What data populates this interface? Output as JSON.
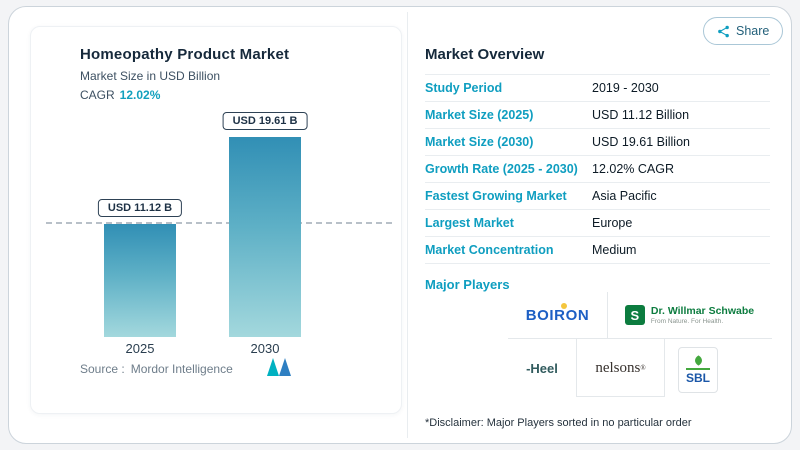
{
  "theme": {
    "accent_teal": "#0f9ec0",
    "navy": "#16293b",
    "bar_gradient_top": "#318fb5",
    "bar_gradient_bottom": "#a3d8dd"
  },
  "share_button": {
    "label": "Share"
  },
  "left_panel": {
    "title": "Homeopathy Product Market",
    "subtitle": "Market Size in USD Billion",
    "cagr_label": "CAGR",
    "cagr_value": "12.02%",
    "source_label": "Source :",
    "source_value": "Mordor Intelligence"
  },
  "chart_data": {
    "type": "bar",
    "title": "Homeopathy Product Market",
    "ylabel": "Market Size in USD Billion",
    "unit": "USD Billion",
    "categories": [
      "2025",
      "2030"
    ],
    "values": [
      11.12,
      19.61
    ],
    "bar_labels": [
      "USD 11.12 B",
      "USD 19.61 B"
    ],
    "cagr_percent": 12.02,
    "ylim": [
      0,
      20
    ],
    "grid": false,
    "reference_line": {
      "at_value": 11.12,
      "style": "dashed"
    }
  },
  "market_overview": {
    "title": "Market Overview",
    "rows": [
      {
        "label": "Study Period",
        "value": "2019 - 2030"
      },
      {
        "label": "Market Size (2025)",
        "value": "USD 11.12 Billion"
      },
      {
        "label": "Market Size (2030)",
        "value": "USD 19.61 Billion"
      },
      {
        "label": "Growth Rate (2025 - 2030)",
        "value": "12.02% CAGR"
      },
      {
        "label": "Fastest Growing Market",
        "value": "Asia Pacific"
      },
      {
        "label": "Largest Market",
        "value": "Europe"
      },
      {
        "label": "Market Concentration",
        "value": "Medium"
      }
    ],
    "major_players_label": "Major Players",
    "players": [
      {
        "name": "BOIRON"
      },
      {
        "name": "Dr. Willmar Schwabe",
        "icon_letter": "S",
        "tagline": "From Nature. For Health."
      },
      {
        "name": "Heel",
        "display": "-Heel"
      },
      {
        "name": "nelsons",
        "mark": "®"
      },
      {
        "name": "SBL"
      }
    ],
    "disclaimer": "*Disclaimer: Major Players sorted in no particular order"
  }
}
